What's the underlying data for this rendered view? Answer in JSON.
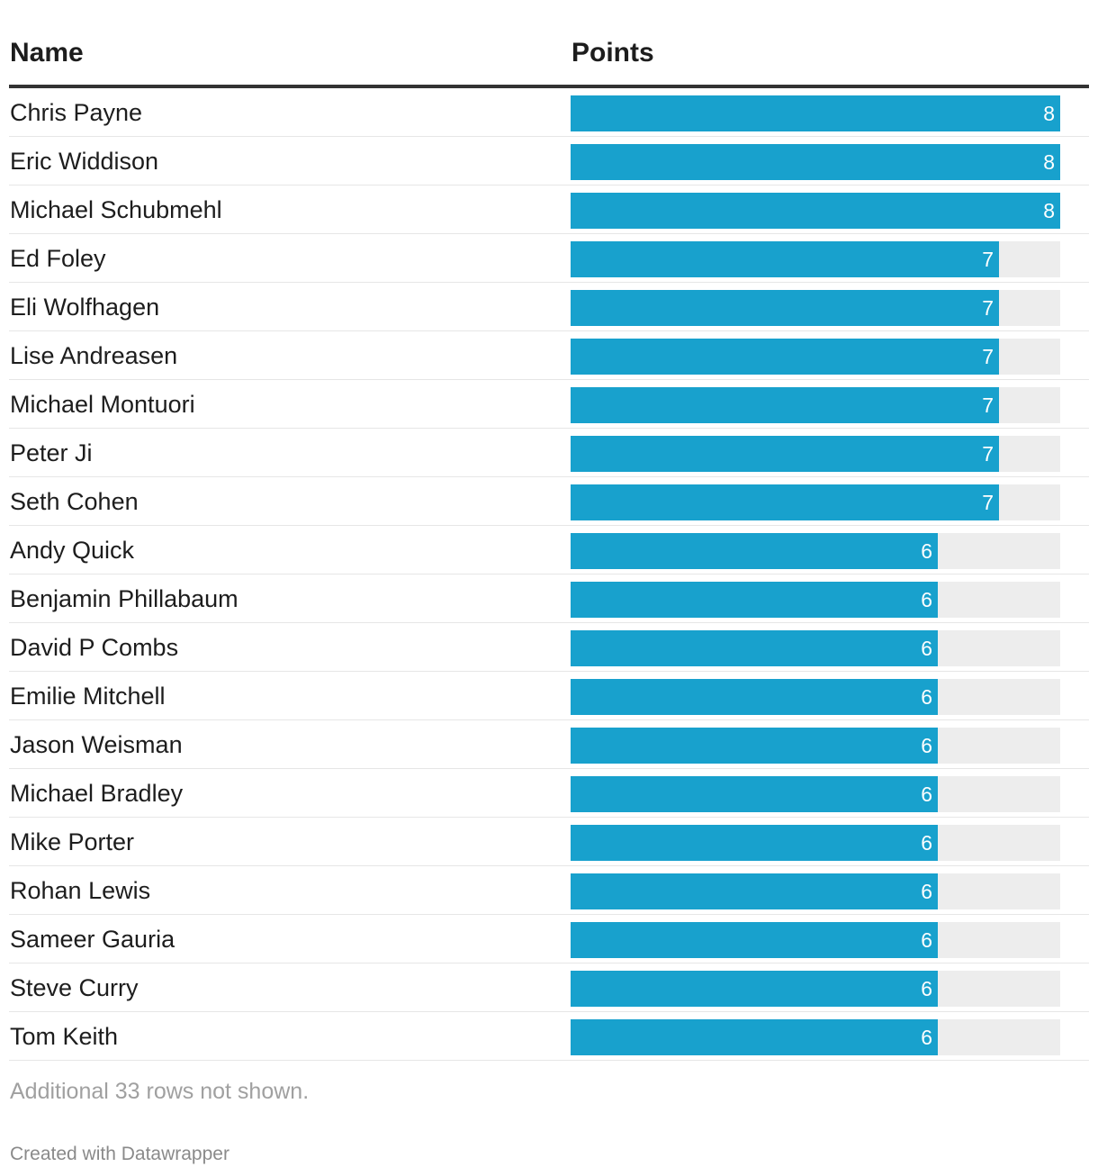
{
  "header": {
    "name_label": "Name",
    "points_label": "Points"
  },
  "chart_data": {
    "type": "table",
    "columns": [
      "Name",
      "Points"
    ],
    "bar_color": "#18a1cd",
    "track_color": "#ededed",
    "max": 8,
    "rows": [
      {
        "name": "Chris Payne",
        "points": 8
      },
      {
        "name": "Eric Widdison",
        "points": 8
      },
      {
        "name": "Michael Schubmehl",
        "points": 8
      },
      {
        "name": "Ed Foley",
        "points": 7
      },
      {
        "name": "Eli Wolfhagen",
        "points": 7
      },
      {
        "name": "Lise Andreasen",
        "points": 7
      },
      {
        "name": "Michael Montuori",
        "points": 7
      },
      {
        "name": "Peter Ji",
        "points": 7
      },
      {
        "name": "Seth Cohen",
        "points": 7
      },
      {
        "name": "Andy Quick",
        "points": 6
      },
      {
        "name": "Benjamin Phillabaum",
        "points": 6
      },
      {
        "name": "David P Combs",
        "points": 6
      },
      {
        "name": "Emilie Mitchell",
        "points": 6
      },
      {
        "name": "Jason Weisman",
        "points": 6
      },
      {
        "name": "Michael Bradley",
        "points": 6
      },
      {
        "name": "Mike Porter",
        "points": 6
      },
      {
        "name": "Rohan Lewis",
        "points": 6
      },
      {
        "name": "Sameer Gauria",
        "points": 6
      },
      {
        "name": "Steve Curry",
        "points": 6
      },
      {
        "name": "Tom Keith",
        "points": 6
      }
    ]
  },
  "footer": {
    "notes": "Additional 33 rows not shown.",
    "credit": "Created with Datawrapper"
  }
}
